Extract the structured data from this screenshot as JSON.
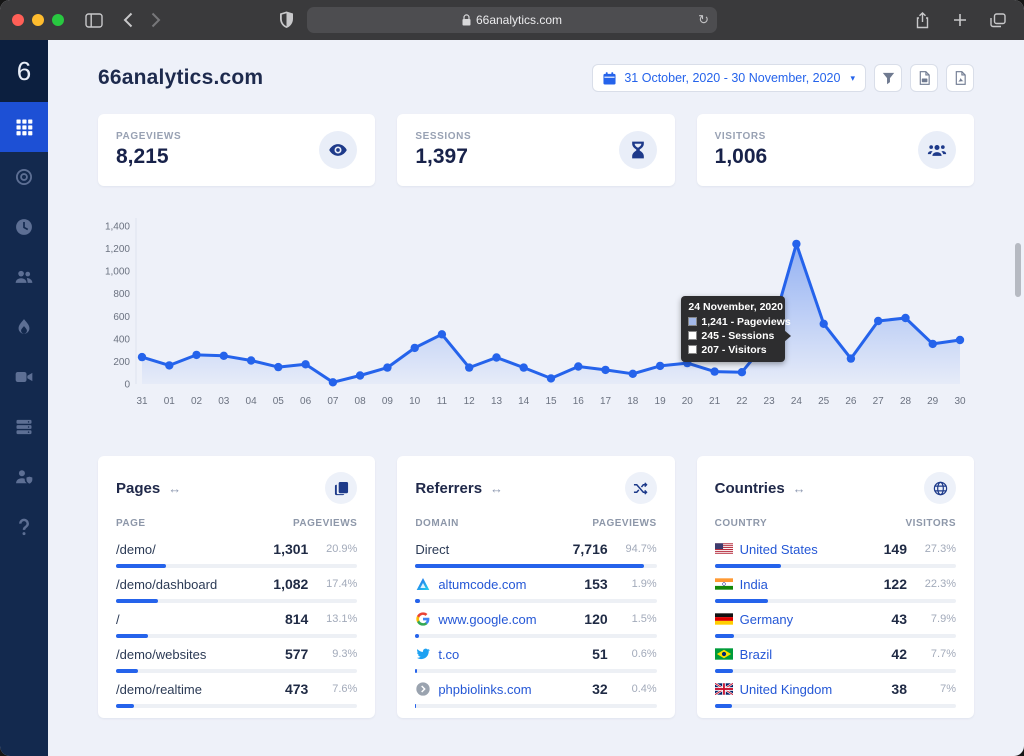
{
  "browser": {
    "url": "66analytics.com",
    "reload_glyph": "↻"
  },
  "sidebar": {
    "logo": "6",
    "items": [
      {
        "icon": "grid-icon",
        "active": true
      },
      {
        "icon": "bullseye-icon",
        "active": false
      },
      {
        "icon": "clock-icon",
        "active": false
      },
      {
        "icon": "users-icon",
        "active": false
      },
      {
        "icon": "flame-icon",
        "active": false
      },
      {
        "icon": "video-camera-icon",
        "active": false
      },
      {
        "icon": "server-icon",
        "active": false
      },
      {
        "icon": "user-shield-icon",
        "active": false
      },
      {
        "icon": "question-icon",
        "active": false
      }
    ]
  },
  "header": {
    "title": "66analytics.com",
    "date_range": "31 October, 2020 - 30 November, 2020",
    "caret": "▾"
  },
  "stats": [
    {
      "label": "PAGEVIEWS",
      "value": "8,215",
      "icon": "eye-icon"
    },
    {
      "label": "SESSIONS",
      "value": "1,397",
      "icon": "hourglass-icon"
    },
    {
      "label": "VISITORS",
      "value": "1,006",
      "icon": "people-icon"
    }
  ],
  "chart_data": {
    "type": "line",
    "title": "Pageviews over time",
    "x": [
      "31",
      "01",
      "02",
      "03",
      "04",
      "05",
      "06",
      "07",
      "08",
      "09",
      "10",
      "11",
      "12",
      "13",
      "14",
      "15",
      "16",
      "17",
      "18",
      "19",
      "20",
      "21",
      "22",
      "23",
      "24",
      "25",
      "26",
      "27",
      "28",
      "29",
      "30"
    ],
    "series": [
      {
        "name": "Pageviews",
        "values": [
          238,
          165,
          258,
          250,
          208,
          150,
          175,
          15,
          75,
          145,
          320,
          440,
          145,
          235,
          145,
          50,
          155,
          125,
          90,
          160,
          185,
          110,
          105,
          400,
          1241,
          533,
          225,
          558,
          585,
          355,
          390
        ]
      }
    ],
    "ylim": [
      0,
      1400
    ],
    "yticks": [
      0,
      200,
      400,
      600,
      800,
      1000,
      1200,
      1400
    ],
    "line_color": "#2563eb",
    "grid": false,
    "highlight_index": 24,
    "tooltip": {
      "title": "24 November, 2020",
      "rows": [
        {
          "swatch": "#a3b8e8",
          "text": "1,241 - Pageviews"
        },
        {
          "swatch": "#ffffff",
          "text": "245 - Sessions"
        },
        {
          "swatch": "#ffffff",
          "text": "207 - Visitors"
        }
      ]
    }
  },
  "panels": {
    "pages": {
      "title": "Pages",
      "arrow": "↔",
      "icon": "copy-icon",
      "columns": [
        "PAGE",
        "PAGEVIEWS"
      ],
      "rows": [
        {
          "label": "/demo/",
          "value": "1,301",
          "pct": "20.9%",
          "bar": 20.9,
          "link": false
        },
        {
          "label": "/demo/dashboard",
          "value": "1,082",
          "pct": "17.4%",
          "bar": 17.4,
          "link": false
        },
        {
          "label": "/",
          "value": "814",
          "pct": "13.1%",
          "bar": 13.1,
          "link": false
        },
        {
          "label": "/demo/websites",
          "value": "577",
          "pct": "9.3%",
          "bar": 9.3,
          "link": false
        },
        {
          "label": "/demo/realtime",
          "value": "473",
          "pct": "7.6%",
          "bar": 7.6,
          "link": false
        }
      ]
    },
    "referrers": {
      "title": "Referrers",
      "arrow": "↔",
      "icon": "shuffle-icon",
      "columns": [
        "DOMAIN",
        "PAGEVIEWS"
      ],
      "rows": [
        {
          "label": "Direct",
          "value": "7,716",
          "pct": "94.7%",
          "bar": 94.7,
          "link": false
        },
        {
          "label": "altumcode.com",
          "value": "153",
          "pct": "1.9%",
          "bar": 1.9,
          "link": true,
          "icon": "altumcode-icon"
        },
        {
          "label": "www.google.com",
          "value": "120",
          "pct": "1.5%",
          "bar": 1.5,
          "link": true,
          "icon": "google-icon"
        },
        {
          "label": "t.co",
          "value": "51",
          "pct": "0.6%",
          "bar": 0.6,
          "link": true,
          "icon": "twitter-icon"
        },
        {
          "label": "phpbiolinks.com",
          "value": "32",
          "pct": "0.4%",
          "bar": 0.4,
          "link": true,
          "icon": "link-circle-icon"
        }
      ]
    },
    "countries": {
      "title": "Countries",
      "arrow": "↔",
      "icon": "globe-icon",
      "columns": [
        "COUNTRY",
        "VISITORS"
      ],
      "rows": [
        {
          "label": "United States",
          "value": "149",
          "pct": "27.3%",
          "bar": 27.3,
          "link": true,
          "flag": "us-flag"
        },
        {
          "label": "India",
          "value": "122",
          "pct": "22.3%",
          "bar": 22.3,
          "link": true,
          "flag": "india-flag"
        },
        {
          "label": "Germany",
          "value": "43",
          "pct": "7.9%",
          "bar": 7.9,
          "link": true,
          "flag": "germany-flag"
        },
        {
          "label": "Brazil",
          "value": "42",
          "pct": "7.7%",
          "bar": 7.7,
          "link": true,
          "flag": "brazil-flag"
        },
        {
          "label": "United Kingdom",
          "value": "38",
          "pct": "7%",
          "bar": 7,
          "link": true,
          "flag": "uk-flag"
        }
      ]
    }
  }
}
